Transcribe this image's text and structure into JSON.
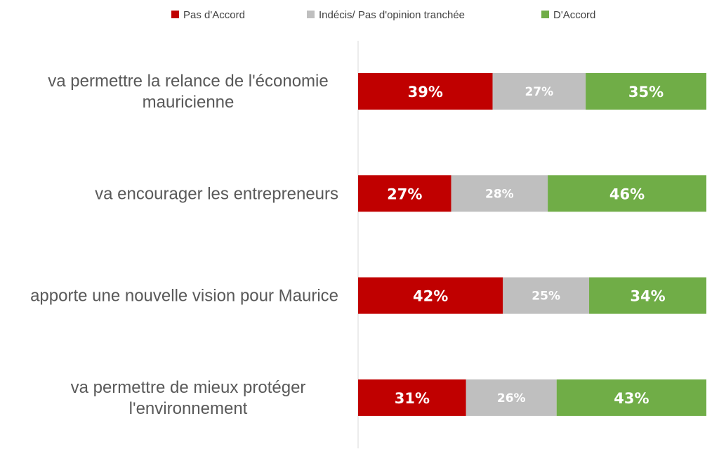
{
  "chart_data": {
    "type": "bar",
    "orientation": "horizontal",
    "stacked": true,
    "percent": true,
    "title": "",
    "xlabel": "",
    "ylabel": "",
    "xlim": [
      0,
      100
    ],
    "grid": false,
    "legend_position": "top",
    "categories": [
      [
        "va permettre la relance de l'économie",
        "mauricienne"
      ],
      [
        "va encourager les entrepreneurs"
      ],
      [
        "apporte une nouvelle vision pour Maurice"
      ],
      [
        "va permettre de mieux protéger",
        "l'environnement"
      ]
    ],
    "series": [
      {
        "name": "Pas d'Accord",
        "color": "#c00000",
        "values": [
          39,
          27,
          42,
          31
        ],
        "labels": [
          "39%",
          "27%",
          "42%",
          "31%"
        ]
      },
      {
        "name": "Indécis/ Pas d'opinion tranchée",
        "color": "#bfbfbf",
        "values": [
          27,
          28,
          25,
          26
        ],
        "labels": [
          "27%",
          "28%",
          "25%",
          "26%"
        ]
      },
      {
        "name": "D'Accord",
        "color": "#70ad47",
        "values": [
          35,
          46,
          34,
          43
        ],
        "labels": [
          "35%",
          "46%",
          "34%",
          "43%"
        ]
      }
    ]
  }
}
